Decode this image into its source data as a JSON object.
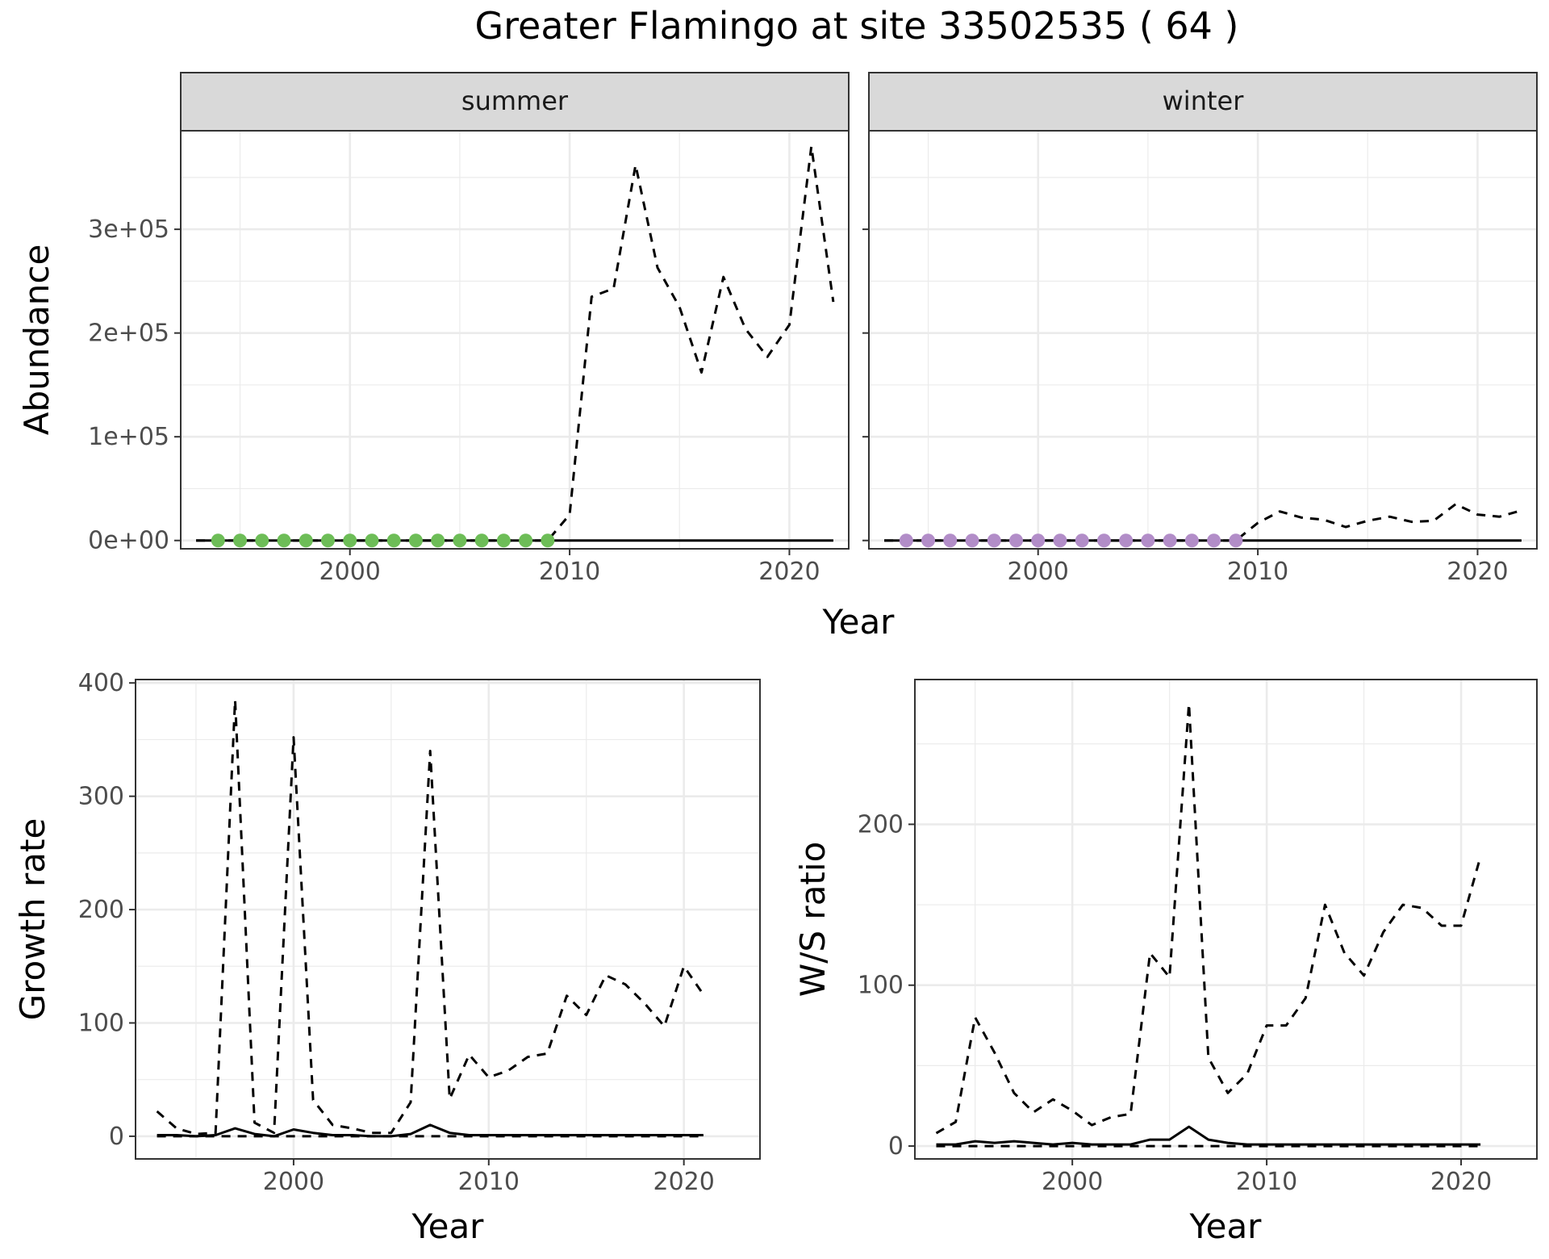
{
  "title": "Greater Flamingo at site 33502535 ( 64 )",
  "colors": {
    "summer_points": "#6dbd57",
    "winter_points": "#b28dc8",
    "lines": "#000000",
    "strip_fill": "#d9d9d9",
    "grid": "#ebebeb"
  },
  "chart_data": [
    {
      "id": "summer",
      "type": "line",
      "facet_label": "summer",
      "xlabel": "Year",
      "ylabel": "Abundance",
      "xlim": [
        1992.3,
        2022.7
      ],
      "ylim": [
        -8000,
        395000
      ],
      "x_ticks": [
        2000,
        2010,
        2020
      ],
      "x_tick_labels": [
        "2000",
        "2010",
        "2020"
      ],
      "y_ticks": [
        0,
        100000,
        200000,
        300000
      ],
      "y_tick_labels": [
        "0e+00",
        "1e+05",
        "2e+05",
        "3e+05"
      ],
      "grid": true,
      "series": [
        {
          "style": "dashed",
          "x": [
            1993,
            1994,
            1995,
            1996,
            1997,
            1998,
            1999,
            2000,
            2001,
            2002,
            2003,
            2004,
            2005,
            2006,
            2007,
            2008,
            2009,
            2010,
            2011,
            2012,
            2013,
            2014,
            2015,
            2016,
            2017,
            2018,
            2019,
            2020,
            2021,
            2022
          ],
          "y": [
            0,
            0,
            0,
            0,
            0,
            0,
            0,
            0,
            0,
            0,
            0,
            0,
            0,
            0,
            0,
            0,
            0,
            25000,
            235000,
            243000,
            362000,
            263000,
            225000,
            162000,
            254000,
            204000,
            177000,
            208000,
            380000,
            230000
          ]
        },
        {
          "style": "solid",
          "x": [
            1993,
            1994,
            1995,
            1996,
            1997,
            1998,
            1999,
            2000,
            2001,
            2002,
            2003,
            2004,
            2005,
            2006,
            2007,
            2008,
            2009,
            2010,
            2011,
            2012,
            2013,
            2014,
            2015,
            2016,
            2017,
            2018,
            2019,
            2020,
            2021,
            2022
          ],
          "y": [
            0,
            0,
            0,
            0,
            0,
            0,
            0,
            0,
            0,
            0,
            0,
            0,
            0,
            0,
            0,
            0,
            0,
            0,
            0,
            0,
            0,
            0,
            0,
            0,
            0,
            0,
            0,
            0,
            0,
            0
          ]
        }
      ],
      "points": {
        "x": [
          1994,
          1995,
          1996,
          1997,
          1998,
          1999,
          2000,
          2001,
          2002,
          2003,
          2004,
          2005,
          2006,
          2007,
          2008,
          2009
        ],
        "y": [
          0,
          0,
          0,
          0,
          0,
          0,
          0,
          0,
          0,
          0,
          0,
          0,
          0,
          0,
          0,
          0
        ]
      }
    },
    {
      "id": "winter",
      "type": "line",
      "facet_label": "winter",
      "xlabel": "Year",
      "ylabel": "Abundance",
      "xlim": [
        1992.3,
        2022.7
      ],
      "ylim": [
        -8000,
        395000
      ],
      "x_ticks": [
        2000,
        2010,
        2020
      ],
      "x_tick_labels": [
        "2000",
        "2010",
        "2020"
      ],
      "y_ticks": [
        0,
        100000,
        200000,
        300000
      ],
      "grid": true,
      "series": [
        {
          "style": "dashed",
          "x": [
            1993,
            1994,
            1995,
            1996,
            1997,
            1998,
            1999,
            2000,
            2001,
            2002,
            2003,
            2004,
            2005,
            2006,
            2007,
            2008,
            2009,
            2010,
            2011,
            2012,
            2013,
            2014,
            2015,
            2016,
            2017,
            2018,
            2019,
            2020,
            2021,
            2022
          ],
          "y": [
            0,
            0,
            0,
            0,
            0,
            0,
            0,
            0,
            0,
            0,
            0,
            0,
            0,
            0,
            0,
            0,
            0,
            17000,
            28000,
            22000,
            20000,
            13000,
            19000,
            23000,
            18000,
            19000,
            35000,
            25000,
            23000,
            29000
          ]
        },
        {
          "style": "solid",
          "x": [
            1993,
            1994,
            1995,
            1996,
            1997,
            1998,
            1999,
            2000,
            2001,
            2002,
            2003,
            2004,
            2005,
            2006,
            2007,
            2008,
            2009,
            2010,
            2011,
            2012,
            2013,
            2014,
            2015,
            2016,
            2017,
            2018,
            2019,
            2020,
            2021,
            2022
          ],
          "y": [
            0,
            0,
            0,
            0,
            0,
            0,
            0,
            0,
            0,
            0,
            0,
            0,
            0,
            0,
            0,
            0,
            0,
            0,
            0,
            0,
            0,
            0,
            0,
            0,
            0,
            0,
            0,
            0,
            0,
            0
          ]
        }
      ],
      "points": {
        "x": [
          1994,
          1995,
          1996,
          1997,
          1998,
          1999,
          2000,
          2001,
          2002,
          2003,
          2004,
          2005,
          2006,
          2007,
          2008,
          2009
        ],
        "y": [
          0,
          0,
          0,
          0,
          0,
          0,
          0,
          0,
          0,
          0,
          0,
          0,
          0,
          0,
          0,
          0
        ]
      }
    },
    {
      "id": "growth",
      "type": "line",
      "xlabel": "Year",
      "ylabel": "Growth rate",
      "xlim": [
        1991.9,
        2023.9
      ],
      "ylim": [
        -20,
        403
      ],
      "x_ticks": [
        2000,
        2010,
        2020
      ],
      "x_tick_labels": [
        "2000",
        "2010",
        "2020"
      ],
      "y_ticks": [
        0,
        100,
        200,
        300,
        400
      ],
      "y_tick_labels": [
        "0",
        "100",
        "200",
        "300",
        "400"
      ],
      "grid": true,
      "series": [
        {
          "style": "dashed",
          "x": [
            1993,
            1994,
            1995,
            1996,
            1997,
            1998,
            1999,
            2000,
            2001,
            2002,
            2003,
            2004,
            2005,
            2006,
            2007,
            2008,
            2009,
            2010,
            2011,
            2012,
            2013,
            2014,
            2015,
            2016,
            2017,
            2018,
            2019,
            2020,
            2021
          ],
          "y": [
            22,
            7,
            2,
            3,
            385,
            12,
            3,
            352,
            32,
            10,
            7,
            3,
            3,
            30,
            340,
            33,
            72,
            52,
            58,
            70,
            73,
            124,
            107,
            142,
            134,
            117,
            97,
            150,
            125
          ]
        },
        {
          "style": "dashed",
          "x": [
            1993,
            2021
          ],
          "y": [
            0,
            0
          ]
        },
        {
          "style": "solid",
          "x": [
            1993,
            1994,
            1995,
            1996,
            1997,
            1998,
            1999,
            2000,
            2001,
            2002,
            2003,
            2004,
            2005,
            2006,
            2007,
            2008,
            2009,
            2010,
            2011,
            2012,
            2013,
            2014,
            2015,
            2016,
            2017,
            2018,
            2019,
            2020,
            2021
          ],
          "y": [
            1,
            1,
            0,
            1,
            7,
            2,
            0,
            6,
            3,
            1,
            1,
            0,
            0,
            2,
            10,
            3,
            1,
            1,
            1,
            1,
            1,
            1,
            1,
            1,
            1,
            1,
            1,
            1,
            1
          ]
        }
      ]
    },
    {
      "id": "ratio",
      "type": "line",
      "xlabel": "Year",
      "ylabel": "W/S ratio",
      "xlim": [
        1991.9,
        2023.9
      ],
      "ylim": [
        -8,
        290
      ],
      "x_ticks": [
        2000,
        2010,
        2020
      ],
      "x_tick_labels": [
        "2000",
        "2010",
        "2020"
      ],
      "y_ticks": [
        0,
        100,
        200
      ],
      "y_tick_labels": [
        "0",
        "100",
        "200"
      ],
      "grid": true,
      "series": [
        {
          "style": "dashed",
          "x": [
            1993,
            1994,
            1995,
            1996,
            1997,
            1998,
            1999,
            2000,
            2001,
            2002,
            2003,
            2004,
            2005,
            2006,
            2007,
            2008,
            2009,
            2010,
            2011,
            2012,
            2013,
            2014,
            2015,
            2016,
            2017,
            2018,
            2019,
            2020,
            2021
          ],
          "y": [
            8,
            15,
            80,
            58,
            33,
            21,
            29,
            22,
            13,
            18,
            20,
            120,
            105,
            275,
            55,
            33,
            45,
            75,
            75,
            92,
            150,
            120,
            106,
            133,
            150,
            148,
            137,
            137,
            180
          ]
        },
        {
          "style": "dashed",
          "x": [
            1993,
            2021
          ],
          "y": [
            0,
            0
          ]
        },
        {
          "style": "solid",
          "x": [
            1993,
            1994,
            1995,
            1996,
            1997,
            1998,
            1999,
            2000,
            2001,
            2002,
            2003,
            2004,
            2005,
            2006,
            2007,
            2008,
            2009,
            2010,
            2011,
            2012,
            2013,
            2014,
            2015,
            2016,
            2017,
            2018,
            2019,
            2020,
            2021
          ],
          "y": [
            1,
            1,
            3,
            2,
            3,
            2,
            1,
            2,
            1,
            1,
            1,
            4,
            4,
            12,
            4,
            2,
            1,
            1,
            1,
            1,
            1,
            1,
            1,
            1,
            1,
            1,
            1,
            1,
            1
          ]
        }
      ]
    }
  ]
}
